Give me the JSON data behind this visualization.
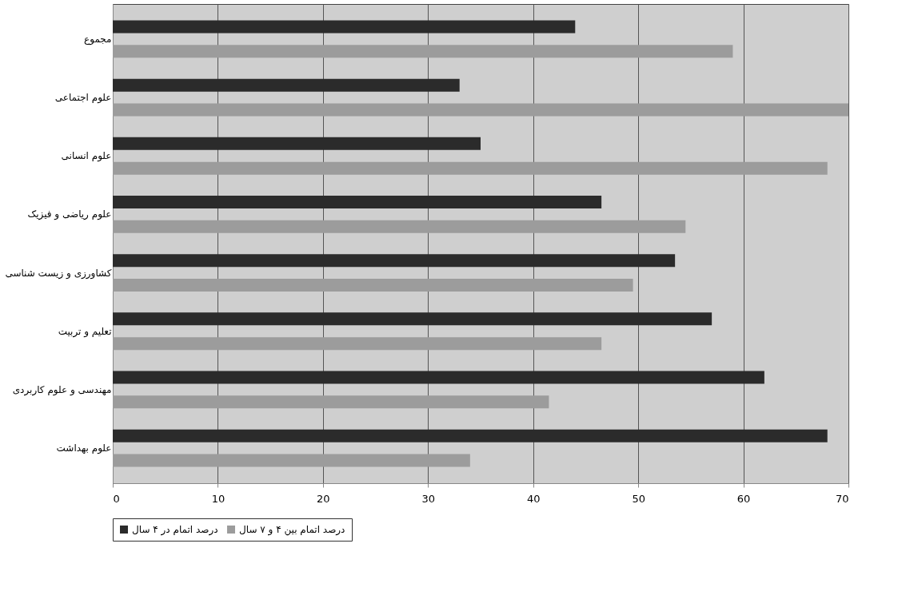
{
  "chart_data": {
    "type": "bar",
    "orientation": "horizontal",
    "categories": [
      "مجموع",
      "علوم اجتماعی",
      "علوم انسانی",
      "علوم ریاضی و فیزیک",
      "کشاورزی و زیست شناسی",
      "تعلیم و تربیت",
      "مهندسی و علوم کاربردی",
      "علوم بهداشت"
    ],
    "series": [
      {
        "name": "درصد اتمام در ۴ سال",
        "color": "#2b2b2b",
        "values": [
          44,
          33,
          35,
          46.5,
          53.5,
          57,
          62,
          68
        ]
      },
      {
        "name": "درصد اتمام بین ۴ و ۷ سال",
        "color": "#9c9c9c",
        "values": [
          59,
          70,
          68,
          54.5,
          49.5,
          46.5,
          41.5,
          34
        ]
      }
    ],
    "xlim": [
      0,
      70
    ],
    "xticks": [
      0,
      10,
      20,
      30,
      40,
      50,
      60,
      70
    ],
    "grid": "x",
    "legend": "bottom"
  }
}
